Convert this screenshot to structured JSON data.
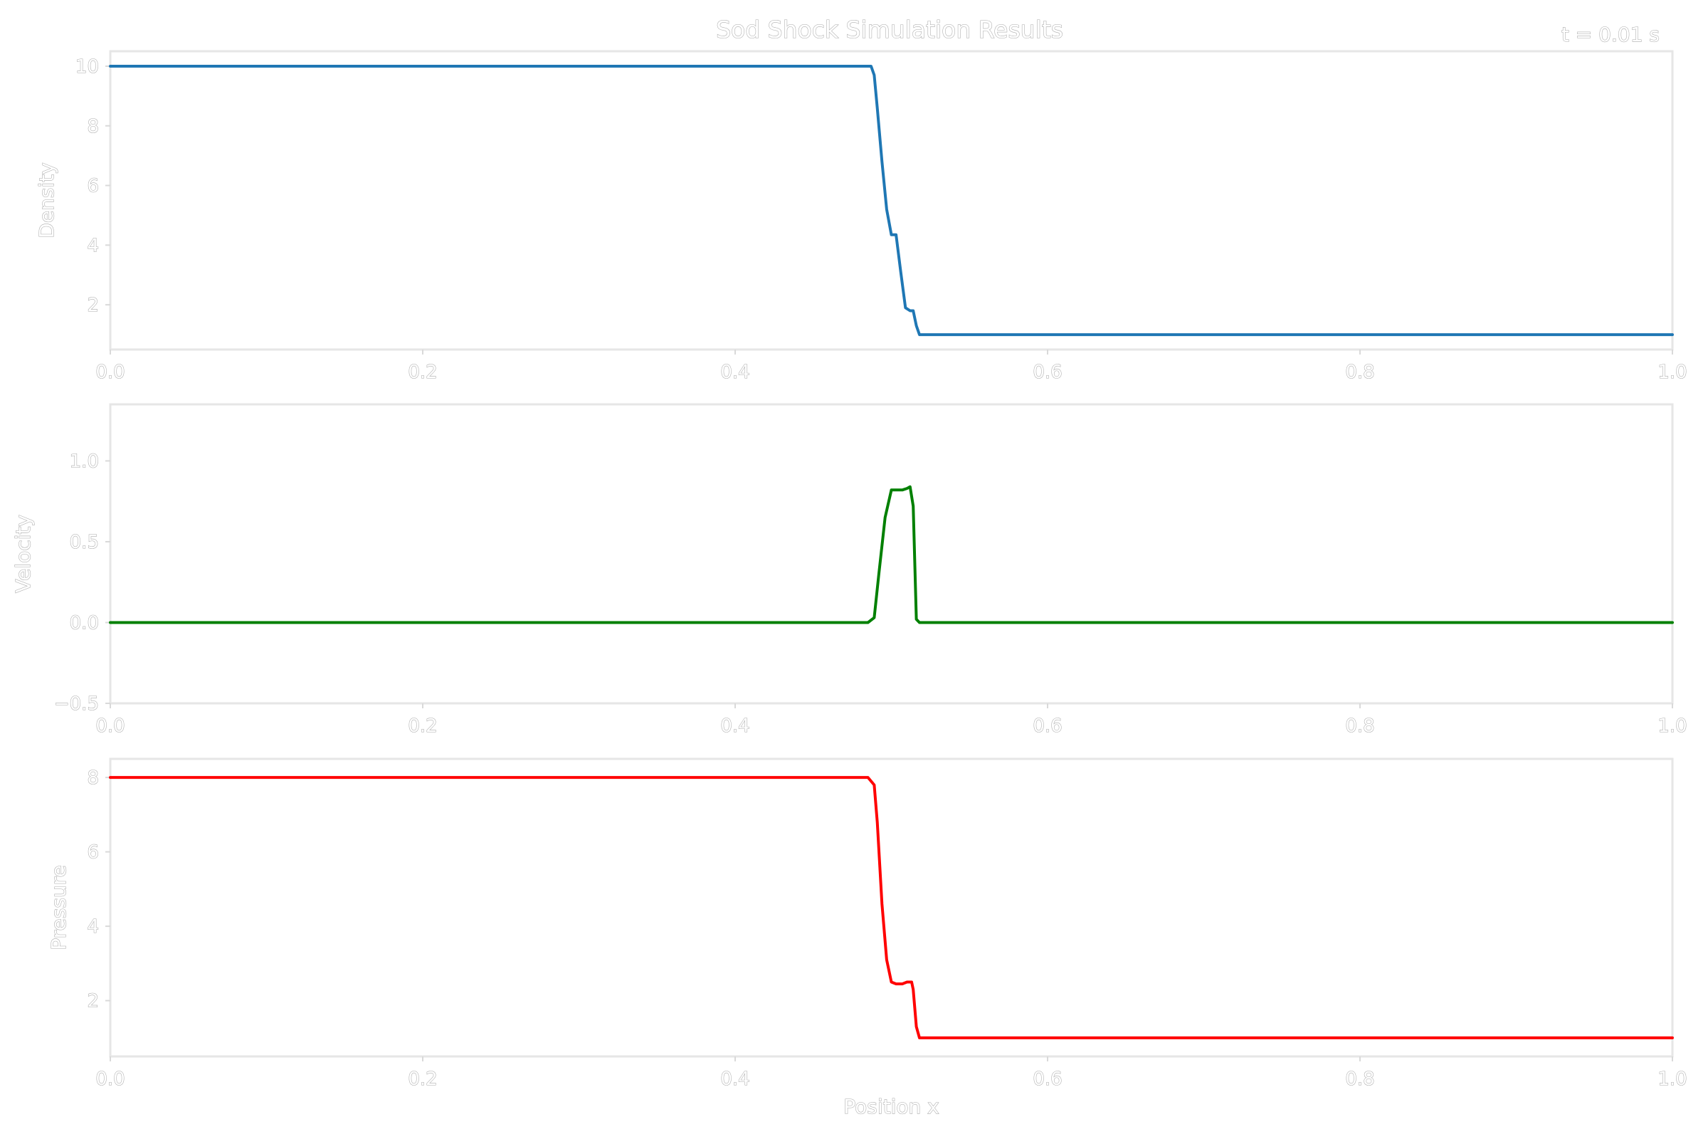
{
  "title": "Sod Shock Simulation Results",
  "time_label": "t = 0.01 s",
  "chart_data": [
    {
      "type": "line",
      "id": "density",
      "ylabel": "Density",
      "xlim": [
        0,
        1
      ],
      "ylim": [
        0.5,
        10.5
      ],
      "xticks": [
        0.0,
        0.2,
        0.4,
        0.6,
        0.8,
        1.0
      ],
      "xtick_labels": [
        "0.0",
        "0.2",
        "0.4",
        "0.6",
        "0.8",
        "1.0"
      ],
      "yticks": [
        2,
        4,
        6,
        8,
        10
      ],
      "ytick_labels": [
        "2",
        "4",
        "6",
        "8",
        "10"
      ],
      "color": "#1f77b4",
      "x": [
        0.0,
        0.48,
        0.487,
        0.489,
        0.491,
        0.494,
        0.497,
        0.5,
        0.503,
        0.506,
        0.509,
        0.512,
        0.514,
        0.516,
        0.518,
        0.52,
        0.53,
        0.6,
        0.8,
        1.0
      ],
      "y": [
        10.0,
        10.0,
        10.0,
        9.7,
        8.6,
        6.8,
        5.2,
        4.35,
        4.35,
        3.1,
        1.9,
        1.8,
        1.8,
        1.3,
        1.0,
        1.0,
        1.0,
        1.0,
        1.0,
        1.0
      ]
    },
    {
      "type": "line",
      "id": "velocity",
      "ylabel": "Velocity",
      "xlim": [
        0,
        1
      ],
      "ylim": [
        -0.5,
        1.35
      ],
      "xticks": [
        0.0,
        0.2,
        0.4,
        0.6,
        0.8,
        1.0
      ],
      "xtick_labels": [
        "0.0",
        "0.2",
        "0.4",
        "0.6",
        "0.8",
        "1.0"
      ],
      "yticks": [
        -0.5,
        0.0,
        0.5,
        1.0
      ],
      "ytick_labels": [
        "−0.5",
        "0.0",
        "0.5",
        "1.0"
      ],
      "color": "#008000",
      "x": [
        0.0,
        0.485,
        0.489,
        0.492,
        0.496,
        0.5,
        0.503,
        0.507,
        0.51,
        0.512,
        0.514,
        0.516,
        0.518,
        0.52,
        0.53,
        0.6,
        0.8,
        1.0
      ],
      "y": [
        0.0,
        0.0,
        0.03,
        0.3,
        0.65,
        0.82,
        0.82,
        0.82,
        0.83,
        0.84,
        0.72,
        0.02,
        0.0,
        0.0,
        0.0,
        0.0,
        0.0,
        0.0
      ]
    },
    {
      "type": "line",
      "id": "pressure",
      "ylabel": "Pressure",
      "xlabel": "Position x",
      "xlim": [
        0,
        1
      ],
      "ylim": [
        0.5,
        8.5
      ],
      "xticks": [
        0.0,
        0.2,
        0.4,
        0.6,
        0.8,
        1.0
      ],
      "xtick_labels": [
        "0.0",
        "0.2",
        "0.4",
        "0.6",
        "0.8",
        "1.0"
      ],
      "yticks": [
        2,
        4,
        6,
        8
      ],
      "ytick_labels": [
        "2",
        "4",
        "6",
        "8"
      ],
      "color": "#ff0000",
      "x": [
        0.0,
        0.485,
        0.489,
        0.491,
        0.494,
        0.497,
        0.5,
        0.503,
        0.507,
        0.51,
        0.513,
        0.514,
        0.516,
        0.518,
        0.52,
        0.53,
        0.6,
        0.8,
        1.0
      ],
      "y": [
        8.0,
        8.0,
        7.8,
        6.8,
        4.6,
        3.1,
        2.5,
        2.45,
        2.45,
        2.5,
        2.5,
        2.3,
        1.3,
        1.0,
        1.0,
        1.0,
        1.0,
        1.0,
        1.0
      ]
    }
  ]
}
